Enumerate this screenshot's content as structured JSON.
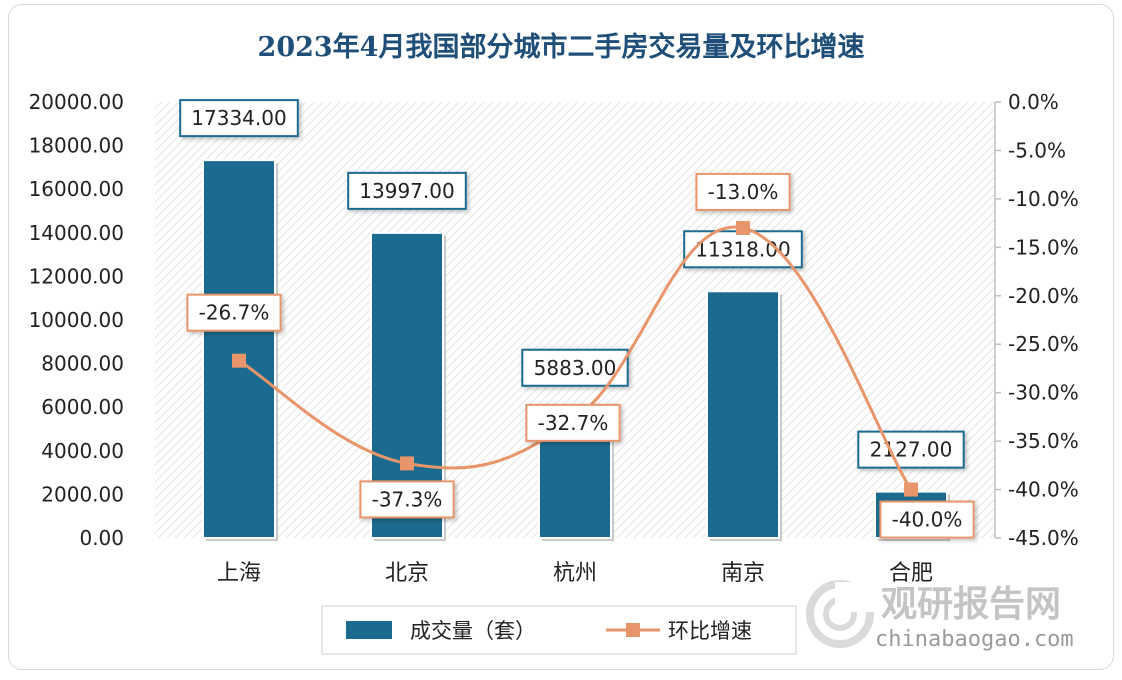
{
  "chart_data": {
    "type": "bar+line",
    "title": "2023年4月我国部分城市二手房交易量及环比增速",
    "categories": [
      "上海",
      "北京",
      "杭州",
      "南京",
      "合肥"
    ],
    "series": [
      {
        "name": "成交量（套）",
        "type": "bar",
        "axis": "left",
        "values": [
          17334.0,
          13997.0,
          5883.0,
          11318.0,
          2127.0
        ],
        "labels": [
          "17334.00",
          "13997.00",
          "5883.00",
          "11318.00",
          "2127.00"
        ],
        "color": "#1b6a8f"
      },
      {
        "name": "环比增速",
        "type": "line",
        "axis": "right",
        "values": [
          -26.7,
          -37.3,
          -32.7,
          -13.0,
          -40.0
        ],
        "labels": [
          "-26.7%",
          "-37.3%",
          "-32.7%",
          "-13.0%",
          "-40.0%"
        ],
        "color": "#e8956b"
      }
    ],
    "y_left": {
      "range": [
        0,
        20000
      ],
      "ticks": [
        "0.00",
        "2000.00",
        "4000.00",
        "6000.00",
        "8000.00",
        "10000.00",
        "12000.00",
        "14000.00",
        "16000.00",
        "18000.00",
        "20000.00"
      ]
    },
    "y_right": {
      "range": [
        -45,
        0
      ],
      "ticks": [
        "0.0%",
        "-5.0%",
        "-10.0%",
        "-15.0%",
        "-20.0%",
        "-25.0%",
        "-30.0%",
        "-35.0%",
        "-40.0%",
        "-45.0%"
      ]
    },
    "legend_position": "bottom",
    "grid": false
  },
  "watermark": {
    "brand": "观研报告网",
    "url": "chinabaogao.com"
  }
}
